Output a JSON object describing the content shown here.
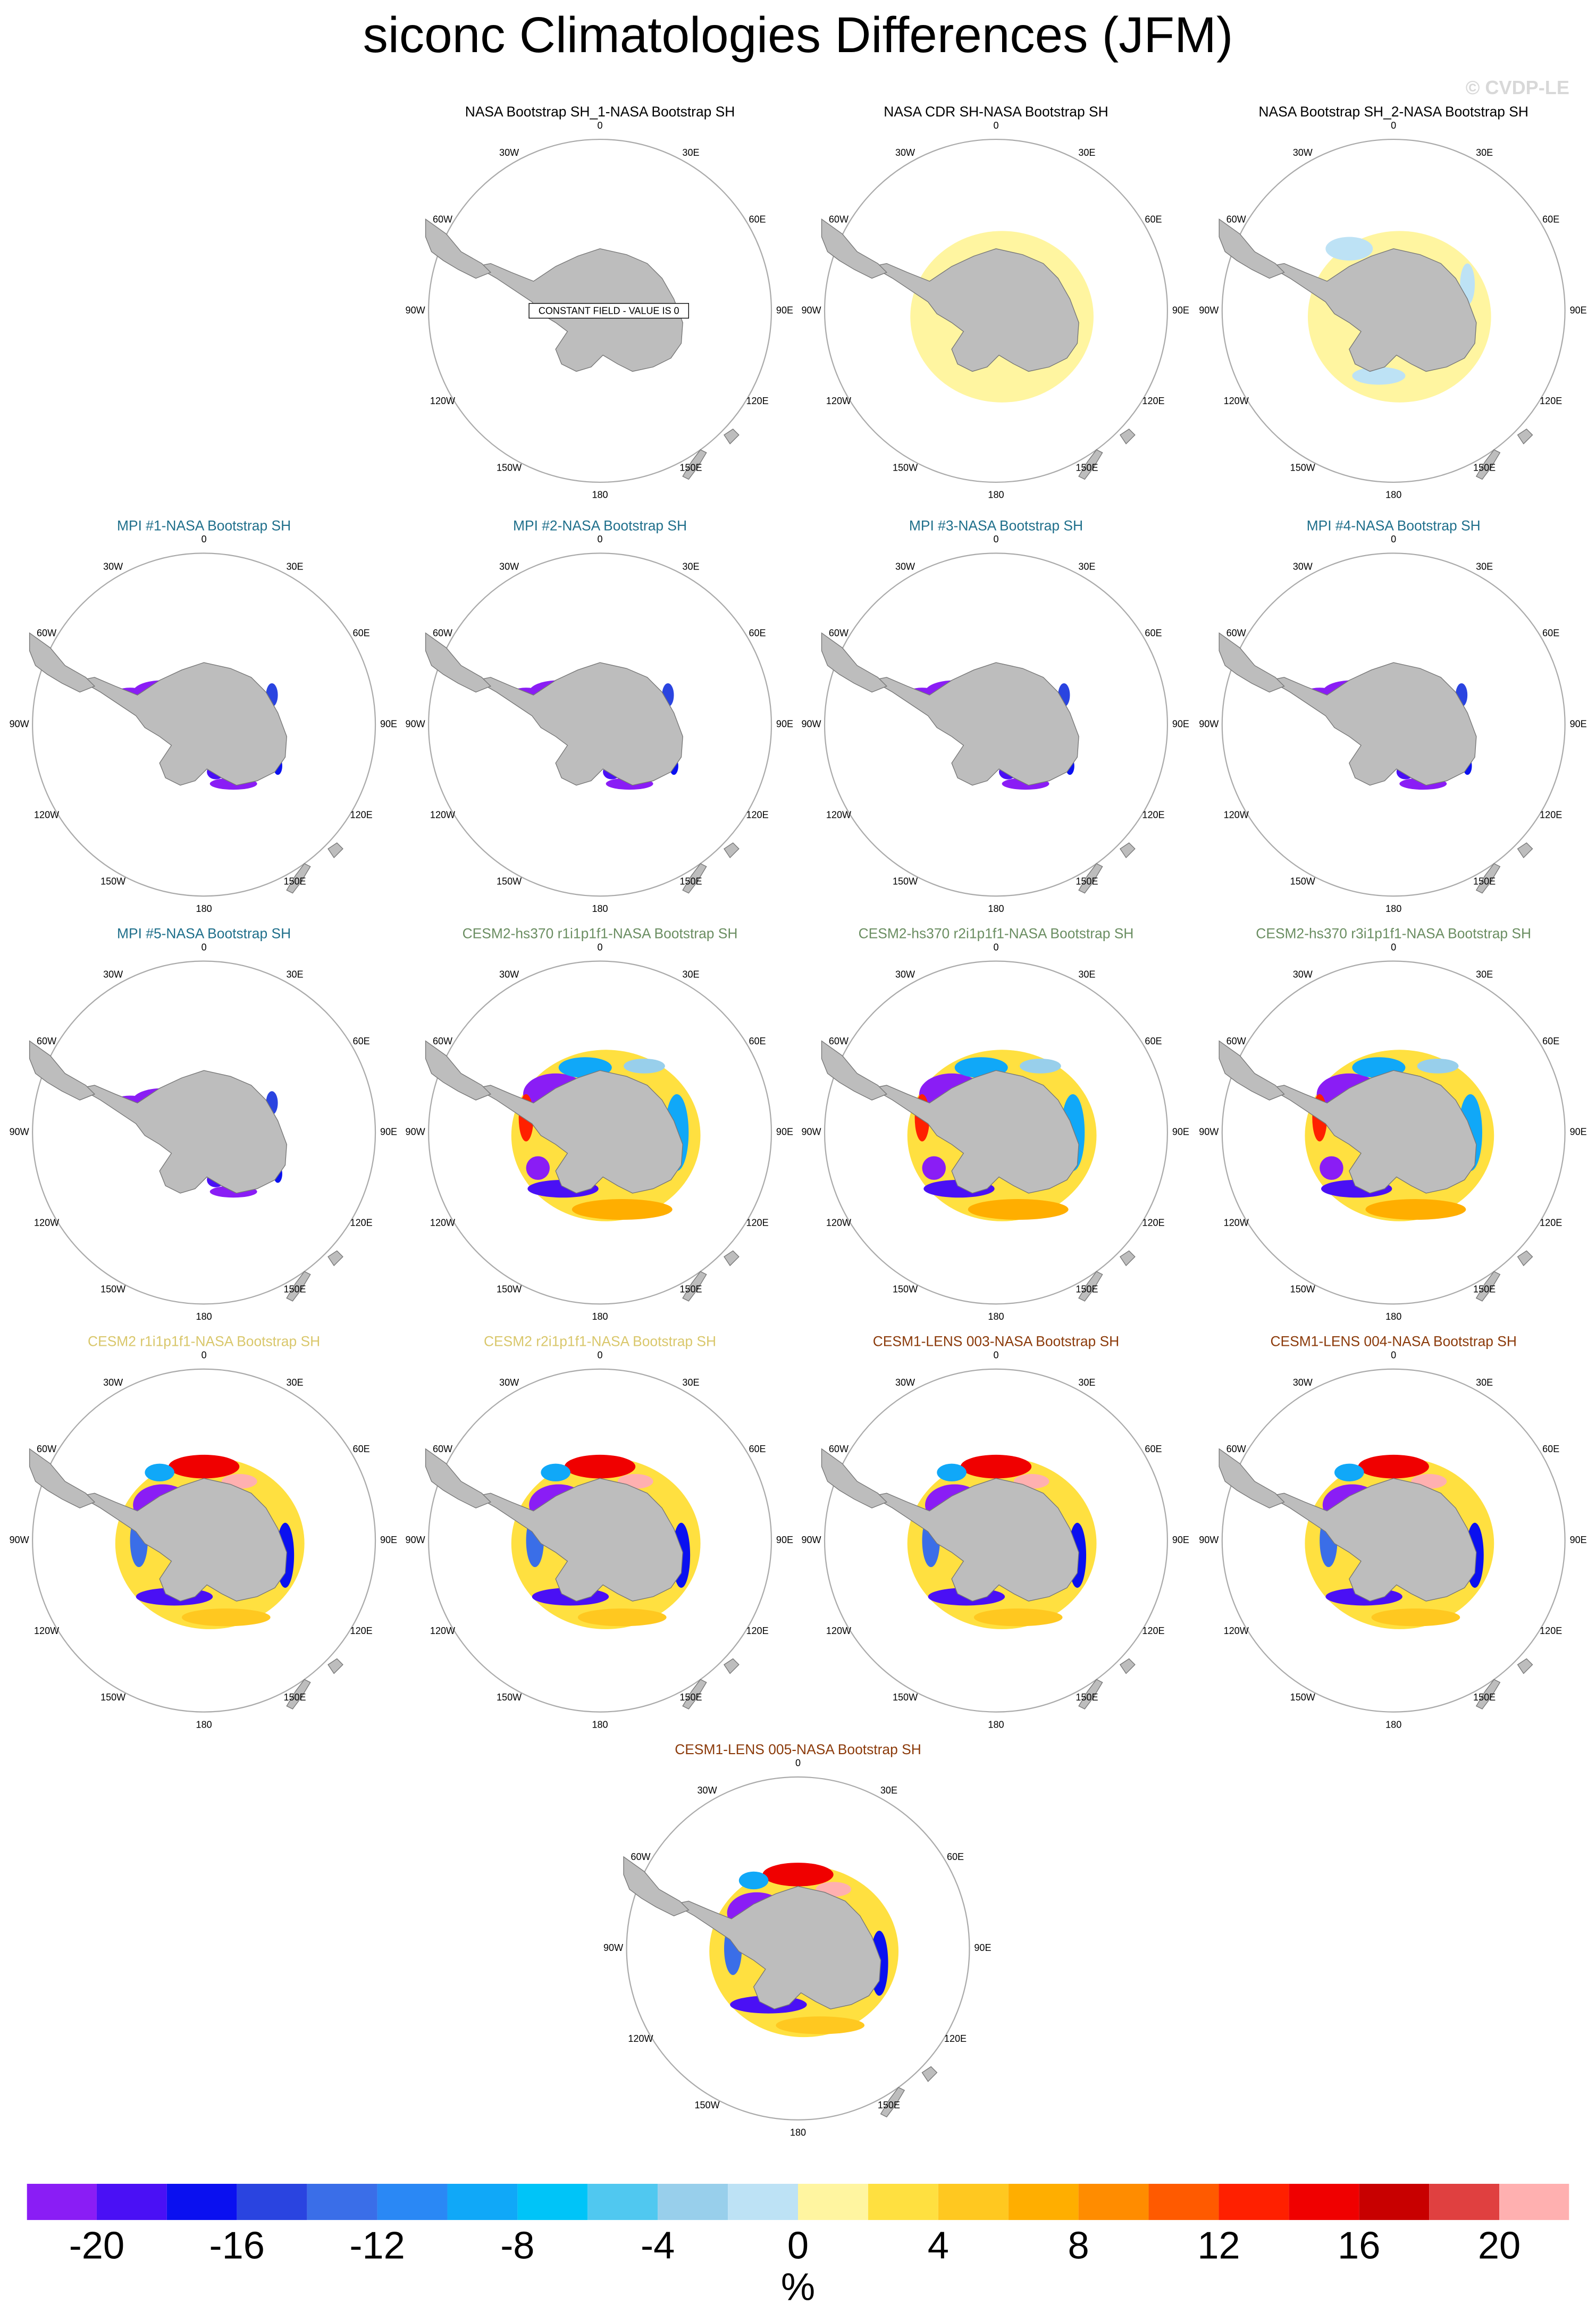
{
  "chart_data": {
    "type": "polar-map-panels",
    "title": "siconc Climatologies Differences (JFM)",
    "watermark": "© CVDP-LE",
    "lon_labels": [
      "0",
      "30E",
      "60E",
      "90E",
      "120E",
      "150E",
      "180",
      "150W",
      "120W",
      "90W",
      "60W",
      "30W"
    ],
    "panels": [
      {
        "title": "NASA Bootstrap SH_1-NASA Bootstrap SH",
        "color": "#000000",
        "annotation": "CONSTANT FIELD - VALUE IS 0"
      },
      {
        "title": "NASA CDR SH-NASA Bootstrap SH",
        "color": "#000000"
      },
      {
        "title": "NASA Bootstrap SH_2-NASA Bootstrap SH",
        "color": "#000000"
      },
      {
        "title": "MPI #1-NASA Bootstrap SH",
        "color": "#1f6f8b"
      },
      {
        "title": "MPI #2-NASA Bootstrap SH",
        "color": "#1f6f8b"
      },
      {
        "title": "MPI #3-NASA Bootstrap SH",
        "color": "#1f6f8b"
      },
      {
        "title": "MPI #4-NASA Bootstrap SH",
        "color": "#1f6f8b"
      },
      {
        "title": "MPI #5-NASA Bootstrap SH",
        "color": "#1f6f8b"
      },
      {
        "title": "CESM2-hs370 r1i1p1f1-NASA Bootstrap SH",
        "color": "#6b8e62"
      },
      {
        "title": "CESM2-hs370 r2i1p1f1-NASA Bootstrap SH",
        "color": "#6b8e62"
      },
      {
        "title": "CESM2-hs370 r3i1p1f1-NASA Bootstrap SH",
        "color": "#6b8e62"
      },
      {
        "title": "CESM2 r1i1p1f1-NASA Bootstrap SH",
        "color": "#d9c76b"
      },
      {
        "title": "CESM2 r2i1p1f1-NASA Bootstrap SH",
        "color": "#d9c76b"
      },
      {
        "title": "CESM1-LENS 003-NASA Bootstrap SH",
        "color": "#8b3a0a"
      },
      {
        "title": "CESM1-LENS 004-NASA Bootstrap SH",
        "color": "#8b3a0a"
      },
      {
        "title": "CESM1-LENS 005-NASA Bootstrap SH",
        "color": "#8b3a0a"
      }
    ],
    "colorbar": {
      "levels": [
        -20,
        -18,
        -16,
        -14,
        -12,
        -10,
        -8,
        -6,
        -4,
        -2,
        0,
        2,
        4,
        6,
        8,
        10,
        12,
        14,
        16,
        18,
        20
      ],
      "colors": [
        "#8a1df5",
        "#4a10f5",
        "#0a10f0",
        "#2a44e0",
        "#3a6ee8",
        "#2a88f5",
        "#10a8f8",
        "#00c4f8",
        "#50c8f0",
        "#98cfeb",
        "#bde2f5",
        "#fff5a0",
        "#ffe040",
        "#ffc820",
        "#ffae00",
        "#ff8c00",
        "#ff5a00",
        "#ff2000",
        "#f00000",
        "#c80000",
        "#e04040",
        "#ffb0b0"
      ],
      "ticks": [
        -20,
        -16,
        -12,
        -8,
        -4,
        0,
        4,
        8,
        12,
        16,
        20
      ],
      "label": "%"
    }
  }
}
